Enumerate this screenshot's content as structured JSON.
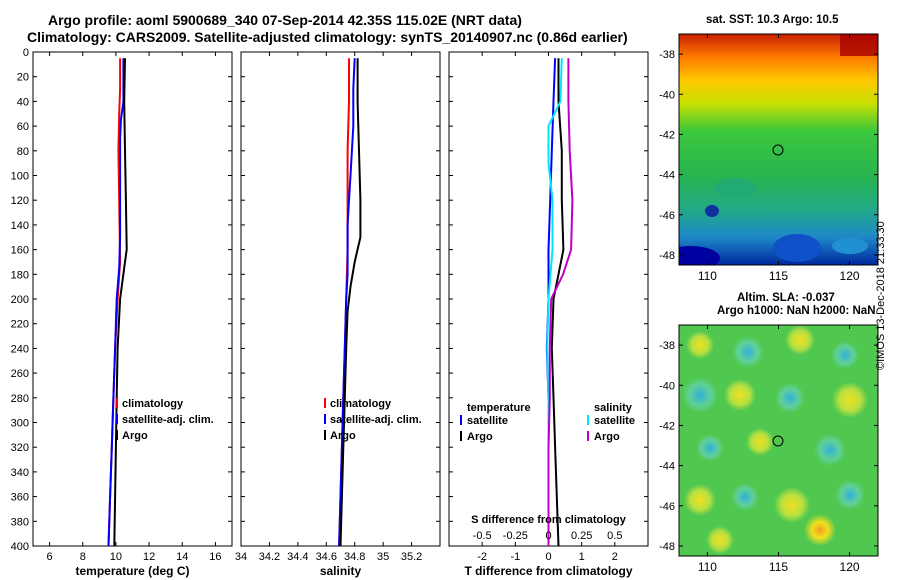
{
  "header": {
    "title_line1": "Argo profile: aoml 5900689_340 07-Sep-2014 42.35S 115.02E (NRT data)",
    "title_line2": "Climatology: CARS2009. Satellite-adjusted climatology: synTS_20140907.nc (0.86d earlier)"
  },
  "maps": {
    "sst_title": "sat. SST: 10.3 Argo: 10.5",
    "sla_title_line1": "Altim. SLA: -0.037",
    "sla_title_line2": "Argo h1000: NaN h2000: NaN",
    "lat_ticks": [
      "-38",
      "-40",
      "-42",
      "-44",
      "-46",
      "-48"
    ],
    "lon_ticks": [
      "110",
      "115",
      "120"
    ],
    "float_lon": 115.02,
    "float_lat": -42.35
  },
  "footer": {
    "stamp": "©IMOS 13-Dec-2018 21:33:30"
  },
  "colors": {
    "climatology": "#ff0000",
    "satellite": "#0000ff",
    "argo": "#000000",
    "sat_salinity": "#00e5ff",
    "argo_salinity": "#c000c0"
  },
  "chart_data": [
    {
      "type": "line",
      "panel": "temperature",
      "xlabel": "temperature (deg C)",
      "ylabel": "",
      "xlim": [
        5,
        17
      ],
      "ylim": [
        400,
        0
      ],
      "x_ticks": [
        "6",
        "8",
        "10",
        "12",
        "14",
        "16"
      ],
      "y_ticks": [
        "0",
        "20",
        "40",
        "60",
        "80",
        "100",
        "120",
        "140",
        "160",
        "180",
        "200",
        "220",
        "240",
        "260",
        "280",
        "300",
        "320",
        "340",
        "360",
        "380",
        "400"
      ],
      "legend": {
        "placement": "bottom-right",
        "entries": [
          "climatology",
          "satellite-adj. clim.",
          "Argo"
        ]
      },
      "series": [
        {
          "name": "climatology",
          "color": "#ff0000",
          "points": [
            [
              10.25,
              5
            ],
            [
              10.25,
              30
            ],
            [
              10.2,
              50
            ],
            [
              10.15,
              80
            ],
            [
              10.2,
              120
            ],
            [
              10.25,
              170
            ],
            [
              10.1,
              200
            ],
            [
              9.95,
              240
            ],
            [
              9.85,
              280
            ],
            [
              9.75,
              320
            ],
            [
              9.65,
              360
            ],
            [
              9.55,
              400
            ]
          ]
        },
        {
          "name": "satellite-adj. clim.",
          "color": "#0000ff",
          "points": [
            [
              10.45,
              5
            ],
            [
              10.45,
              40
            ],
            [
              10.3,
              55
            ],
            [
              10.25,
              70
            ],
            [
              10.25,
              150
            ],
            [
              10.2,
              175
            ],
            [
              10.05,
              200
            ],
            [
              9.95,
              240
            ],
            [
              9.85,
              280
            ],
            [
              9.75,
              320
            ],
            [
              9.65,
              360
            ],
            [
              9.55,
              400
            ]
          ]
        },
        {
          "name": "Argo",
          "color": "#000000",
          "points": [
            [
              10.55,
              5
            ],
            [
              10.5,
              40
            ],
            [
              10.55,
              80
            ],
            [
              10.6,
              120
            ],
            [
              10.65,
              160
            ],
            [
              10.55,
              170
            ],
            [
              10.25,
              200
            ],
            [
              10.1,
              240
            ],
            [
              10.05,
              280
            ],
            [
              10.0,
              320
            ],
            [
              9.95,
              360
            ],
            [
              9.9,
              400
            ]
          ]
        }
      ]
    },
    {
      "type": "line",
      "panel": "salinity",
      "xlabel": "salinity",
      "xlim": [
        34,
        35.4
      ],
      "ylim": [
        400,
        0
      ],
      "x_ticks": [
        "34",
        "34.2",
        "34.4",
        "34.6",
        "34.8",
        "35",
        "35.2"
      ],
      "legend": {
        "placement": "bottom-right",
        "entries": [
          "climatology",
          "satellite-adj. clim.",
          "Argo"
        ]
      },
      "series": [
        {
          "name": "climatology",
          "color": "#ff0000",
          "points": [
            [
              34.76,
              5
            ],
            [
              34.76,
              40
            ],
            [
              34.75,
              80
            ],
            [
              34.75,
              120
            ],
            [
              34.75,
              160
            ],
            [
              34.74,
              200
            ],
            [
              34.73,
              240
            ],
            [
              34.72,
              280
            ],
            [
              34.71,
              320
            ],
            [
              34.7,
              360
            ],
            [
              34.69,
              400
            ]
          ]
        },
        {
          "name": "satellite-adj. clim.",
          "color": "#0000ff",
          "points": [
            [
              34.8,
              5
            ],
            [
              34.79,
              30
            ],
            [
              34.79,
              60
            ],
            [
              34.78,
              80
            ],
            [
              34.77,
              100
            ],
            [
              34.76,
              120
            ],
            [
              34.75,
              140
            ],
            [
              34.75,
              160
            ],
            [
              34.75,
              180
            ],
            [
              34.74,
              200
            ],
            [
              34.73,
              240
            ],
            [
              34.72,
              280
            ],
            [
              34.71,
              320
            ],
            [
              34.7,
              360
            ],
            [
              34.69,
              400
            ]
          ]
        },
        {
          "name": "Argo",
          "color": "#000000",
          "points": [
            [
              34.82,
              5
            ],
            [
              34.82,
              40
            ],
            [
              34.83,
              80
            ],
            [
              34.84,
              120
            ],
            [
              34.84,
              150
            ],
            [
              34.8,
              170
            ],
            [
              34.77,
              190
            ],
            [
              34.75,
              210
            ],
            [
              34.74,
              240
            ],
            [
              34.73,
              280
            ],
            [
              34.72,
              320
            ],
            [
              34.71,
              360
            ],
            [
              34.7,
              400
            ]
          ]
        }
      ]
    },
    {
      "type": "line",
      "panel": "difference",
      "xlabel": "T difference from climatology",
      "top_axis_label": "S difference from climatology",
      "xlim": [
        -3,
        3
      ],
      "s_xlim": [
        -0.75,
        0.75
      ],
      "ylim": [
        400,
        0
      ],
      "x_ticks": [
        "-2",
        "-1",
        "0",
        "1",
        "2"
      ],
      "s_ticks": [
        "-0.5",
        "-0.25",
        "0",
        "0.25",
        "0.5"
      ],
      "legend": {
        "placement": "middle",
        "temperature_header": "temperature",
        "salinity_header": "salinity",
        "entries": [
          "satellite",
          "Argo"
        ]
      },
      "series": [
        {
          "name": "temperature satellite",
          "color": "#0000ff",
          "points": [
            [
              0.2,
              5
            ],
            [
              0.15,
              40
            ],
            [
              0.1,
              80
            ],
            [
              0.05,
              120
            ],
            [
              0.0,
              160
            ],
            [
              0.0,
              200
            ],
            [
              -0.05,
              240
            ],
            [
              0.0,
              280
            ],
            [
              0.0,
              320
            ],
            [
              0.0,
              360
            ],
            [
              0.0,
              400
            ]
          ]
        },
        {
          "name": "temperature Argo",
          "color": "#000000",
          "points": [
            [
              0.3,
              5
            ],
            [
              0.3,
              40
            ],
            [
              0.4,
              80
            ],
            [
              0.4,
              120
            ],
            [
              0.45,
              160
            ],
            [
              0.3,
              180
            ],
            [
              0.15,
              200
            ],
            [
              0.1,
              240
            ],
            [
              0.15,
              280
            ],
            [
              0.2,
              320
            ],
            [
              0.25,
              360
            ],
            [
              0.3,
              400
            ]
          ]
        },
        {
          "name": "salinity satellite",
          "color": "#00e5ff",
          "points": [
            [
              0.1,
              5
            ],
            [
              0.09,
              40
            ],
            [
              0.0,
              60
            ],
            [
              0.0,
              90
            ],
            [
              0.03,
              120
            ],
            [
              0.03,
              160
            ],
            [
              0.0,
              200
            ],
            [
              -0.01,
              240
            ],
            [
              0.0,
              280
            ],
            [
              0.0,
              320
            ],
            [
              0.0,
              360
            ],
            [
              0.0,
              400
            ]
          ]
        },
        {
          "name": "salinity Argo",
          "color": "#c000c0",
          "points": [
            [
              0.15,
              5
            ],
            [
              0.15,
              40
            ],
            [
              0.16,
              80
            ],
            [
              0.18,
              120
            ],
            [
              0.17,
              160
            ],
            [
              0.11,
              180
            ],
            [
              0.02,
              200
            ],
            [
              0.01,
              240
            ],
            [
              0.01,
              280
            ],
            [
              0.0,
              320
            ],
            [
              0.0,
              360
            ],
            [
              0.0,
              400
            ]
          ]
        }
      ]
    }
  ]
}
